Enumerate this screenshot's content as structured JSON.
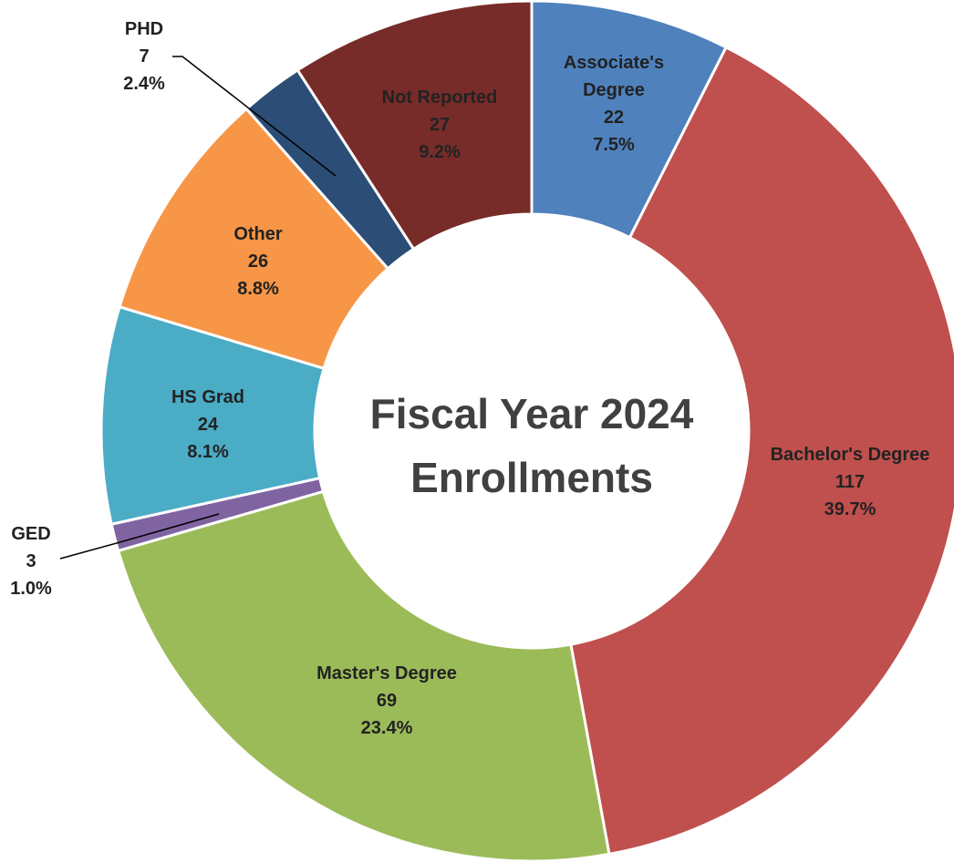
{
  "chart_data": {
    "type": "pie",
    "donut": true,
    "title_lines": [
      "Fiscal Year 2024",
      "Enrollments"
    ],
    "slices": [
      {
        "label": "Associate's Degree",
        "label_lines": [
          "Associate's",
          "Degree"
        ],
        "value": 22,
        "value_text": "22",
        "percent_text": "7.5%",
        "color": "#4F81BD"
      },
      {
        "label": "Bachelor's Degree",
        "label_lines": [
          "Bachelor's Degree"
        ],
        "value": 117,
        "value_text": "117",
        "percent_text": "39.7%",
        "color": "#C0504D"
      },
      {
        "label": "Master's Degree",
        "label_lines": [
          "Master's Degree"
        ],
        "value": 69,
        "value_text": "69",
        "percent_text": "23.4%",
        "color": "#9BBB59"
      },
      {
        "label": "GED",
        "label_lines": [
          "GED"
        ],
        "value": 3,
        "value_text": "3",
        "percent_text": "1.0%",
        "color": "#8064A2"
      },
      {
        "label": "HS Grad",
        "label_lines": [
          "HS Grad"
        ],
        "value": 24,
        "value_text": "24",
        "percent_text": "8.1%",
        "color": "#4BACC6"
      },
      {
        "label": "Other",
        "label_lines": [
          "Other"
        ],
        "value": 26,
        "value_text": "26",
        "percent_text": "8.8%",
        "color": "#F79646"
      },
      {
        "label": "PHD",
        "label_lines": [
          "PHD"
        ],
        "value": 7,
        "value_text": "7",
        "percent_text": "2.4%",
        "color": "#2C4D75"
      },
      {
        "label": "Not Reported",
        "label_lines": [
          "Not Reported"
        ],
        "value": 27,
        "value_text": "27",
        "percent_text": "9.2%",
        "color": "#772C2A"
      }
    ]
  }
}
